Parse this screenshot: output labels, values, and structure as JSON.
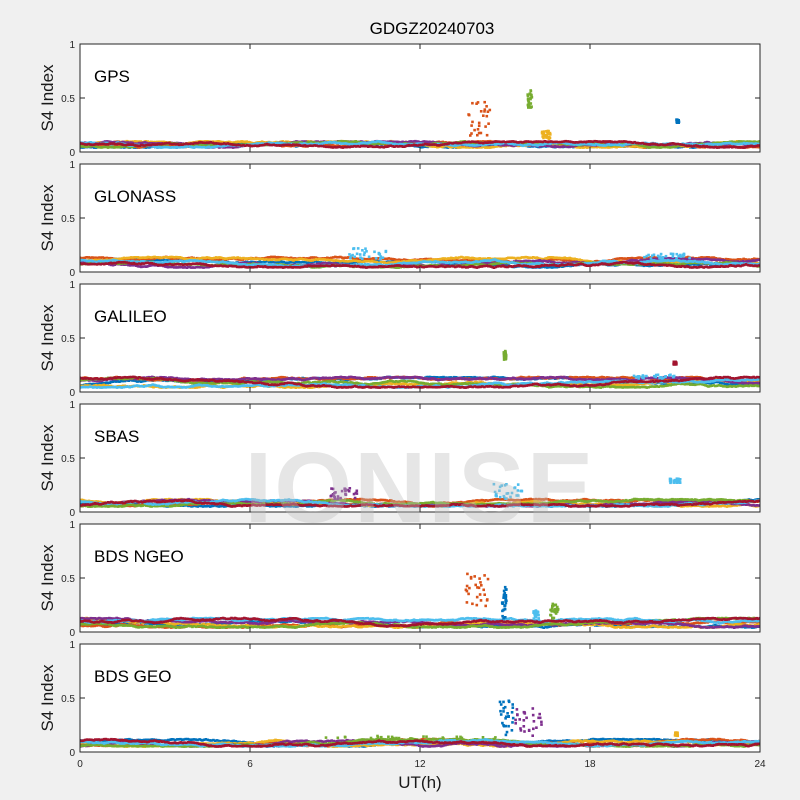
{
  "title": "GDGZ20240703",
  "watermark": "IONISE",
  "colors": [
    "#0072BD",
    "#D95319",
    "#EDB120",
    "#7E2F8E",
    "#77AC30",
    "#4DBEEE",
    "#A2142F"
  ],
  "chart_data": [
    {
      "type": "scatter",
      "panel": "GPS",
      "ylabel": "S4 Index",
      "xlim": [
        0,
        24
      ],
      "ylim": [
        0,
        1
      ],
      "yticks": [
        "0",
        "0.5",
        "1"
      ],
      "baseline": {
        "min": 0.04,
        "max": 0.1
      },
      "features": [
        {
          "x": [
            13.7,
            14.5
          ],
          "y": [
            0.15,
            0.48
          ],
          "color": "#D95319"
        },
        {
          "x": [
            15.8,
            15.95
          ],
          "y": [
            0.4,
            0.58
          ],
          "color": "#77AC30"
        },
        {
          "x": [
            16.3,
            16.6
          ],
          "y": [
            0.12,
            0.2
          ],
          "color": "#EDB120"
        },
        {
          "x": [
            21.05,
            21.15
          ],
          "y": [
            0.27,
            0.3
          ],
          "color": "#0072BD"
        }
      ]
    },
    {
      "type": "scatter",
      "panel": "GLONASS",
      "ylabel": "S4 Index",
      "xlim": [
        0,
        24
      ],
      "ylim": [
        0,
        1
      ],
      "yticks": [
        "0",
        "0.5",
        "1"
      ],
      "baseline": {
        "min": 0.04,
        "max": 0.14
      },
      "features": [
        {
          "x": [
            9.5,
            10.8
          ],
          "y": [
            0.12,
            0.22
          ],
          "color": "#4DBEEE"
        },
        {
          "x": [
            19.8,
            21.6
          ],
          "y": [
            0.12,
            0.17
          ],
          "color": "#4DBEEE"
        }
      ]
    },
    {
      "type": "scatter",
      "panel": "GALILEO",
      "ylabel": "S4 Index",
      "xlim": [
        0,
        24
      ],
      "ylim": [
        0,
        1
      ],
      "yticks": [
        "0",
        "0.5",
        "1"
      ],
      "baseline": {
        "min": 0.04,
        "max": 0.14
      },
      "features": [
        {
          "x": [
            14.95,
            15.05
          ],
          "y": [
            0.3,
            0.38
          ],
          "color": "#77AC30"
        },
        {
          "x": [
            19.5,
            21.0
          ],
          "y": [
            0.12,
            0.16
          ],
          "color": "#4DBEEE"
        },
        {
          "x": [
            20.95,
            21.05
          ],
          "y": [
            0.25,
            0.28
          ],
          "color": "#A2142F"
        }
      ]
    },
    {
      "type": "scatter",
      "panel": "SBAS",
      "ylabel": "S4 Index",
      "xlim": [
        0,
        24
      ],
      "ylim": [
        0,
        1
      ],
      "yticks": [
        "0",
        "0.5",
        "1"
      ],
      "baseline": {
        "min": 0.05,
        "max": 0.12
      },
      "features": [
        {
          "x": [
            8.8,
            9.8
          ],
          "y": [
            0.12,
            0.22
          ],
          "color": "#7E2F8E"
        },
        {
          "x": [
            14.6,
            15.6
          ],
          "y": [
            0.12,
            0.26
          ],
          "color": "#4DBEEE"
        },
        {
          "x": [
            20.8,
            21.2
          ],
          "y": [
            0.27,
            0.31
          ],
          "color": "#4DBEEE"
        }
      ]
    },
    {
      "type": "scatter",
      "panel": "BDS NGEO",
      "ylabel": "S4 Index",
      "xlim": [
        0,
        24
      ],
      "ylim": [
        0,
        1
      ],
      "yticks": [
        "0",
        "0.5",
        "1"
      ],
      "baseline": {
        "min": 0.04,
        "max": 0.13
      },
      "features": [
        {
          "x": [
            13.6,
            14.4
          ],
          "y": [
            0.18,
            0.54
          ],
          "color": "#D95319"
        },
        {
          "x": [
            14.9,
            15.05
          ],
          "y": [
            0.12,
            0.42
          ],
          "color": "#0072BD"
        },
        {
          "x": [
            16.6,
            16.9
          ],
          "y": [
            0.12,
            0.26
          ],
          "color": "#77AC30"
        },
        {
          "x": [
            16.0,
            16.2
          ],
          "y": [
            0.12,
            0.2
          ],
          "color": "#4DBEEE"
        }
      ]
    },
    {
      "type": "scatter",
      "panel": "BDS GEO",
      "ylabel": "S4 Index",
      "xlabel": "UT(h)",
      "xlim": [
        0,
        24
      ],
      "ylim": [
        0,
        1
      ],
      "yticks": [
        "0",
        "0.5",
        "1"
      ],
      "xticks": [
        "0",
        "6",
        "12",
        "18",
        "24"
      ],
      "baseline": {
        "min": 0.05,
        "max": 0.12
      },
      "features": [
        {
          "x": [
            14.8,
            15.3
          ],
          "y": [
            0.15,
            0.5
          ],
          "color": "#0072BD"
        },
        {
          "x": [
            15.3,
            16.3
          ],
          "y": [
            0.15,
            0.42
          ],
          "color": "#7E2F8E"
        },
        {
          "x": [
            8.5,
            15.0
          ],
          "y": [
            0.12,
            0.15
          ],
          "color": "#77AC30"
        },
        {
          "x": [
            21.0,
            21.1
          ],
          "y": [
            0.15,
            0.18
          ],
          "color": "#EDB120"
        }
      ]
    }
  ]
}
